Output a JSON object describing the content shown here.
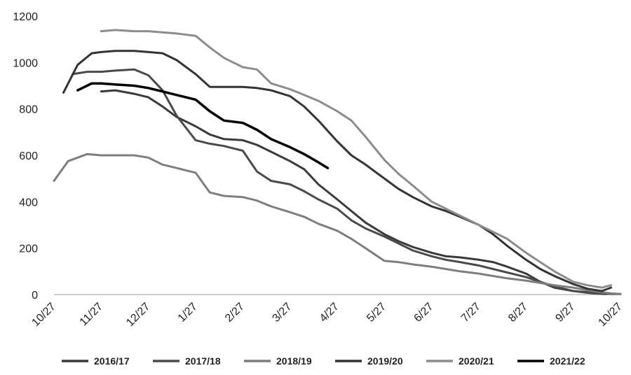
{
  "chart_data": {
    "type": "line",
    "title": "",
    "xlabel": "",
    "ylabel": "",
    "ylim": [
      0,
      1200
    ],
    "yticks": [
      0,
      200,
      400,
      600,
      800,
      1000,
      1200
    ],
    "xlim": [
      0,
      12
    ],
    "xticks": [
      {
        "x": 0,
        "label": "10/27"
      },
      {
        "x": 1,
        "label": "11/27"
      },
      {
        "x": 2,
        "label": "12/27"
      },
      {
        "x": 3,
        "label": "1/27"
      },
      {
        "x": 4,
        "label": "2/27"
      },
      {
        "x": 5,
        "label": "3/27"
      },
      {
        "x": 6,
        "label": "4/27"
      },
      {
        "x": 7,
        "label": "5/27"
      },
      {
        "x": 8,
        "label": "6/27"
      },
      {
        "x": 9,
        "label": "7/27"
      },
      {
        "x": 10,
        "label": "8/27"
      },
      {
        "x": 11,
        "label": "9/27"
      },
      {
        "x": 12,
        "label": "10/27"
      }
    ],
    "grid": false,
    "legend_position": "bottom",
    "series": [
      {
        "name": "2016/17",
        "color": "#3a3a3a",
        "points": [
          [
            1.0,
            875
          ],
          [
            1.3,
            880
          ],
          [
            1.7,
            865
          ],
          [
            2.0,
            850
          ],
          [
            2.3,
            810
          ],
          [
            2.6,
            765
          ],
          [
            3.0,
            725
          ],
          [
            3.3,
            690
          ],
          [
            3.6,
            670
          ],
          [
            4.0,
            665
          ],
          [
            4.3,
            645
          ],
          [
            4.6,
            615
          ],
          [
            5.0,
            575
          ],
          [
            5.3,
            540
          ],
          [
            5.6,
            475
          ],
          [
            6.0,
            410
          ],
          [
            6.3,
            360
          ],
          [
            6.6,
            310
          ],
          [
            7.0,
            260
          ],
          [
            7.3,
            230
          ],
          [
            7.6,
            205
          ],
          [
            8.0,
            180
          ],
          [
            8.3,
            165
          ],
          [
            8.6,
            160
          ],
          [
            9.0,
            150
          ],
          [
            9.3,
            140
          ],
          [
            9.6,
            120
          ],
          [
            10.0,
            90
          ],
          [
            10.3,
            55
          ],
          [
            10.6,
            30
          ],
          [
            11.0,
            15
          ],
          [
            11.4,
            8
          ],
          [
            11.8,
            3
          ],
          [
            12.0,
            2
          ]
        ]
      },
      {
        "name": "2017/18",
        "color": "#4a4a4a",
        "points": [
          [
            0.4,
            950
          ],
          [
            0.7,
            960
          ],
          [
            1.0,
            960
          ],
          [
            1.3,
            965
          ],
          [
            1.7,
            970
          ],
          [
            2.0,
            945
          ],
          [
            2.3,
            880
          ],
          [
            2.6,
            770
          ],
          [
            3.0,
            665
          ],
          [
            3.3,
            650
          ],
          [
            3.6,
            640
          ],
          [
            4.0,
            620
          ],
          [
            4.3,
            530
          ],
          [
            4.6,
            490
          ],
          [
            5.0,
            475
          ],
          [
            5.3,
            445
          ],
          [
            5.6,
            410
          ],
          [
            6.0,
            370
          ],
          [
            6.3,
            320
          ],
          [
            6.6,
            285
          ],
          [
            7.0,
            250
          ],
          [
            7.3,
            220
          ],
          [
            7.6,
            190
          ],
          [
            8.0,
            165
          ],
          [
            8.3,
            150
          ],
          [
            8.6,
            140
          ],
          [
            9.0,
            125
          ],
          [
            9.3,
            110
          ],
          [
            9.6,
            95
          ],
          [
            10.0,
            75
          ],
          [
            10.3,
            55
          ],
          [
            10.6,
            35
          ],
          [
            11.0,
            15
          ],
          [
            11.4,
            5
          ],
          [
            11.7,
            2
          ]
        ]
      },
      {
        "name": "2018/19",
        "color": "#7e7e7e",
        "points": [
          [
            0.0,
            490
          ],
          [
            0.3,
            575
          ],
          [
            0.7,
            605
          ],
          [
            1.0,
            600
          ],
          [
            1.3,
            600
          ],
          [
            1.7,
            600
          ],
          [
            2.0,
            590
          ],
          [
            2.3,
            560
          ],
          [
            2.6,
            545
          ],
          [
            3.0,
            525
          ],
          [
            3.3,
            440
          ],
          [
            3.6,
            425
          ],
          [
            4.0,
            420
          ],
          [
            4.3,
            405
          ],
          [
            4.6,
            380
          ],
          [
            5.0,
            355
          ],
          [
            5.3,
            335
          ],
          [
            5.6,
            305
          ],
          [
            6.0,
            275
          ],
          [
            6.3,
            240
          ],
          [
            6.6,
            200
          ],
          [
            7.0,
            145
          ],
          [
            7.3,
            140
          ],
          [
            7.6,
            130
          ],
          [
            8.0,
            120
          ],
          [
            8.3,
            110
          ],
          [
            8.6,
            100
          ],
          [
            9.0,
            90
          ],
          [
            9.3,
            80
          ],
          [
            9.6,
            70
          ],
          [
            10.0,
            60
          ],
          [
            10.3,
            50
          ],
          [
            10.6,
            40
          ],
          [
            11.0,
            30
          ],
          [
            11.4,
            15
          ],
          [
            11.8,
            5
          ],
          [
            12.0,
            2
          ]
        ]
      },
      {
        "name": "2019/20",
        "color": "#333333",
        "points": [
          [
            0.2,
            870
          ],
          [
            0.5,
            990
          ],
          [
            0.8,
            1040
          ],
          [
            1.0,
            1045
          ],
          [
            1.3,
            1050
          ],
          [
            1.7,
            1050
          ],
          [
            2.0,
            1045
          ],
          [
            2.3,
            1040
          ],
          [
            2.6,
            1010
          ],
          [
            3.0,
            950
          ],
          [
            3.3,
            895
          ],
          [
            3.6,
            895
          ],
          [
            4.0,
            895
          ],
          [
            4.3,
            890
          ],
          [
            4.6,
            880
          ],
          [
            5.0,
            855
          ],
          [
            5.3,
            810
          ],
          [
            5.6,
            750
          ],
          [
            6.0,
            660
          ],
          [
            6.3,
            600
          ],
          [
            6.6,
            560
          ],
          [
            7.0,
            500
          ],
          [
            7.3,
            455
          ],
          [
            7.6,
            420
          ],
          [
            8.0,
            380
          ],
          [
            8.3,
            360
          ],
          [
            8.6,
            335
          ],
          [
            9.0,
            300
          ],
          [
            9.3,
            260
          ],
          [
            9.6,
            210
          ],
          [
            10.0,
            150
          ],
          [
            10.3,
            110
          ],
          [
            10.6,
            80
          ],
          [
            11.0,
            45
          ],
          [
            11.3,
            25
          ],
          [
            11.6,
            15
          ],
          [
            11.8,
            30
          ]
        ]
      },
      {
        "name": "2020/21",
        "color": "#8c8c8c",
        "points": [
          [
            1.0,
            1135
          ],
          [
            1.3,
            1140
          ],
          [
            1.7,
            1135
          ],
          [
            2.0,
            1135
          ],
          [
            2.3,
            1130
          ],
          [
            2.6,
            1125
          ],
          [
            3.0,
            1115
          ],
          [
            3.3,
            1065
          ],
          [
            3.6,
            1020
          ],
          [
            4.0,
            980
          ],
          [
            4.3,
            970
          ],
          [
            4.6,
            910
          ],
          [
            5.0,
            885
          ],
          [
            5.3,
            860
          ],
          [
            5.6,
            835
          ],
          [
            6.0,
            790
          ],
          [
            6.3,
            750
          ],
          [
            6.6,
            680
          ],
          [
            7.0,
            580
          ],
          [
            7.3,
            520
          ],
          [
            7.6,
            470
          ],
          [
            8.0,
            400
          ],
          [
            8.3,
            370
          ],
          [
            8.6,
            340
          ],
          [
            9.0,
            300
          ],
          [
            9.3,
            270
          ],
          [
            9.6,
            240
          ],
          [
            10.0,
            180
          ],
          [
            10.3,
            140
          ],
          [
            10.6,
            100
          ],
          [
            11.0,
            55
          ],
          [
            11.3,
            40
          ],
          [
            11.6,
            30
          ],
          [
            11.8,
            40
          ]
        ]
      },
      {
        "name": "2021/22",
        "color": "#000000",
        "points": [
          [
            0.5,
            880
          ],
          [
            0.8,
            910
          ],
          [
            1.0,
            910
          ],
          [
            1.3,
            905
          ],
          [
            1.7,
            900
          ],
          [
            2.0,
            890
          ],
          [
            2.3,
            875
          ],
          [
            2.6,
            860
          ],
          [
            3.0,
            840
          ],
          [
            3.3,
            790
          ],
          [
            3.6,
            750
          ],
          [
            4.0,
            740
          ],
          [
            4.3,
            710
          ],
          [
            4.6,
            670
          ],
          [
            5.0,
            635
          ],
          [
            5.3,
            605
          ],
          [
            5.6,
            570
          ],
          [
            5.8,
            545
          ]
        ]
      }
    ]
  }
}
